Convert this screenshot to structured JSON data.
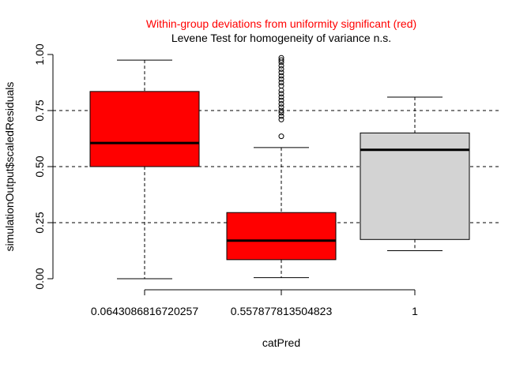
{
  "chart_data": {
    "type": "boxplot",
    "title": "Within-group deviations from uniformity significant (red)",
    "subtitle": "Levene Test for homogeneity of variance n.s.",
    "xlabel": "catPred",
    "ylabel": "simulationOutput$scaledResiduals",
    "ylim": [
      0,
      1
    ],
    "yticks": [
      0.0,
      0.25,
      0.5,
      0.75,
      1.0
    ],
    "ytick_labels": [
      "0.00",
      "0.25",
      "0.50",
      "0.75",
      "1.00"
    ],
    "reference_lines": [
      0.25,
      0.5,
      0.75
    ],
    "categories": [
      "0.0643086816720257",
      "0.557877813504823",
      "1"
    ],
    "boxes": [
      {
        "category": "0.0643086816720257",
        "whisker_low": 0.0,
        "q1": 0.5,
        "median": 0.605,
        "q3": 0.835,
        "whisker_high": 0.975,
        "fill": "#ff0000",
        "outliers": []
      },
      {
        "category": "0.557877813504823",
        "whisker_low": 0.005,
        "q1": 0.085,
        "median": 0.17,
        "q3": 0.295,
        "whisker_high": 0.585,
        "fill": "#ff0000",
        "outliers": [
          0.635,
          0.71,
          0.725,
          0.74,
          0.75,
          0.765,
          0.78,
          0.795,
          0.81,
          0.825,
          0.84,
          0.86,
          0.875,
          0.89,
          0.905,
          0.92,
          0.935,
          0.95,
          0.965,
          0.975,
          0.985
        ]
      },
      {
        "category": "1",
        "whisker_low": 0.125,
        "q1": 0.175,
        "median": 0.575,
        "q3": 0.65,
        "whisker_high": 0.81,
        "fill": "#d3d3d3",
        "outliers": []
      }
    ]
  }
}
